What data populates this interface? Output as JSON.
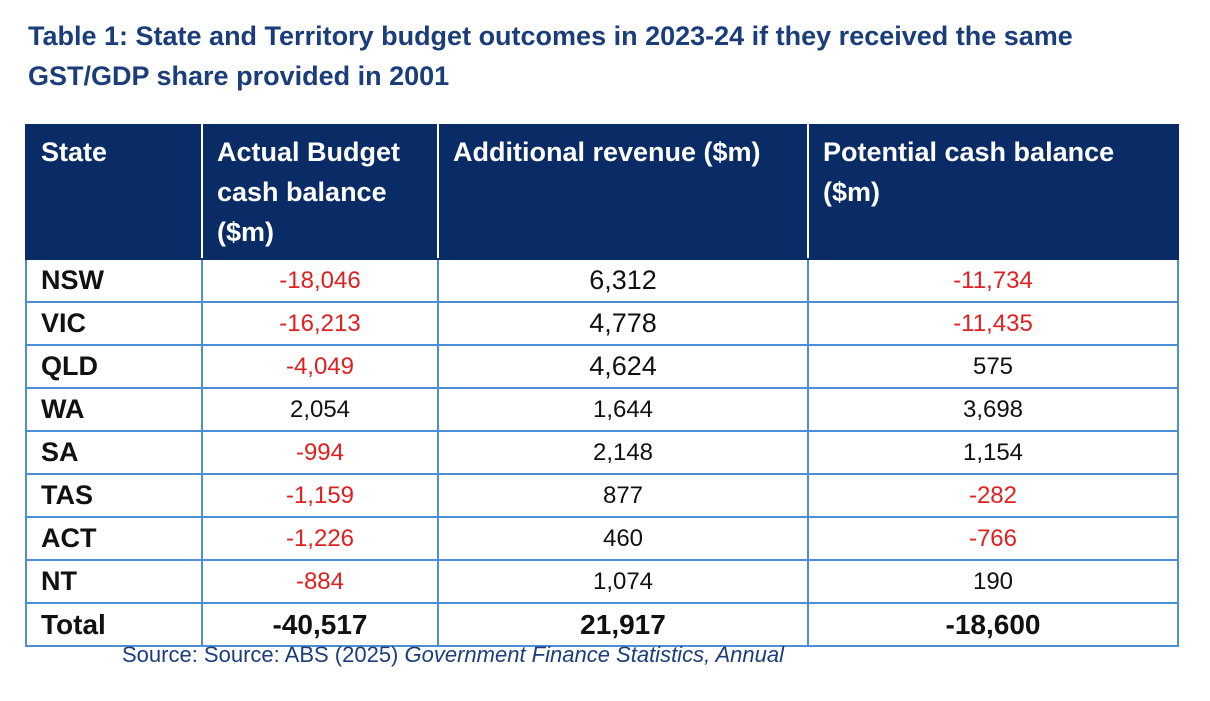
{
  "title": "Table 1: State and Territory budget outcomes in 2023-24 if they received the same GST/GDP share provided in 2001",
  "table": {
    "headers": [
      "State",
      "Actual Budget cash balance ($m)",
      "Additional revenue ($m)",
      "Potential cash balance ($m)"
    ],
    "rows": [
      {
        "state": "NSW",
        "actual": "-18,046",
        "additional": "6,312",
        "potential": "-11,734"
      },
      {
        "state": "VIC",
        "actual": "-16,213",
        "additional": "4,778",
        "potential": "-11,435"
      },
      {
        "state": "QLD",
        "actual": "-4,049",
        "additional": "4,624",
        "potential": "575"
      },
      {
        "state": "WA",
        "actual": "2,054",
        "additional": "1,644",
        "potential": "3,698"
      },
      {
        "state": "SA",
        "actual": "-994",
        "additional": "2,148",
        "potential": "1,154"
      },
      {
        "state": "TAS",
        "actual": "-1,159",
        "additional": "877",
        "potential": "-282"
      },
      {
        "state": "ACT",
        "actual": "-1,226",
        "additional": "460",
        "potential": "-766"
      },
      {
        "state": "NT",
        "actual": "-884",
        "additional": "1,074",
        "potential": "190"
      }
    ],
    "total": {
      "state": "Total",
      "actual": "-40,517",
      "additional": "21,917",
      "potential": "-18,600"
    }
  },
  "source": {
    "prefix": "Source: Source: ABS (2025) ",
    "italic": "Government Finance Statistics, Annual"
  },
  "colors": {
    "title": "#1b3d7a",
    "header_bg": "#0a2c66",
    "border": "#4c8fd8",
    "negative": "#e02020"
  }
}
